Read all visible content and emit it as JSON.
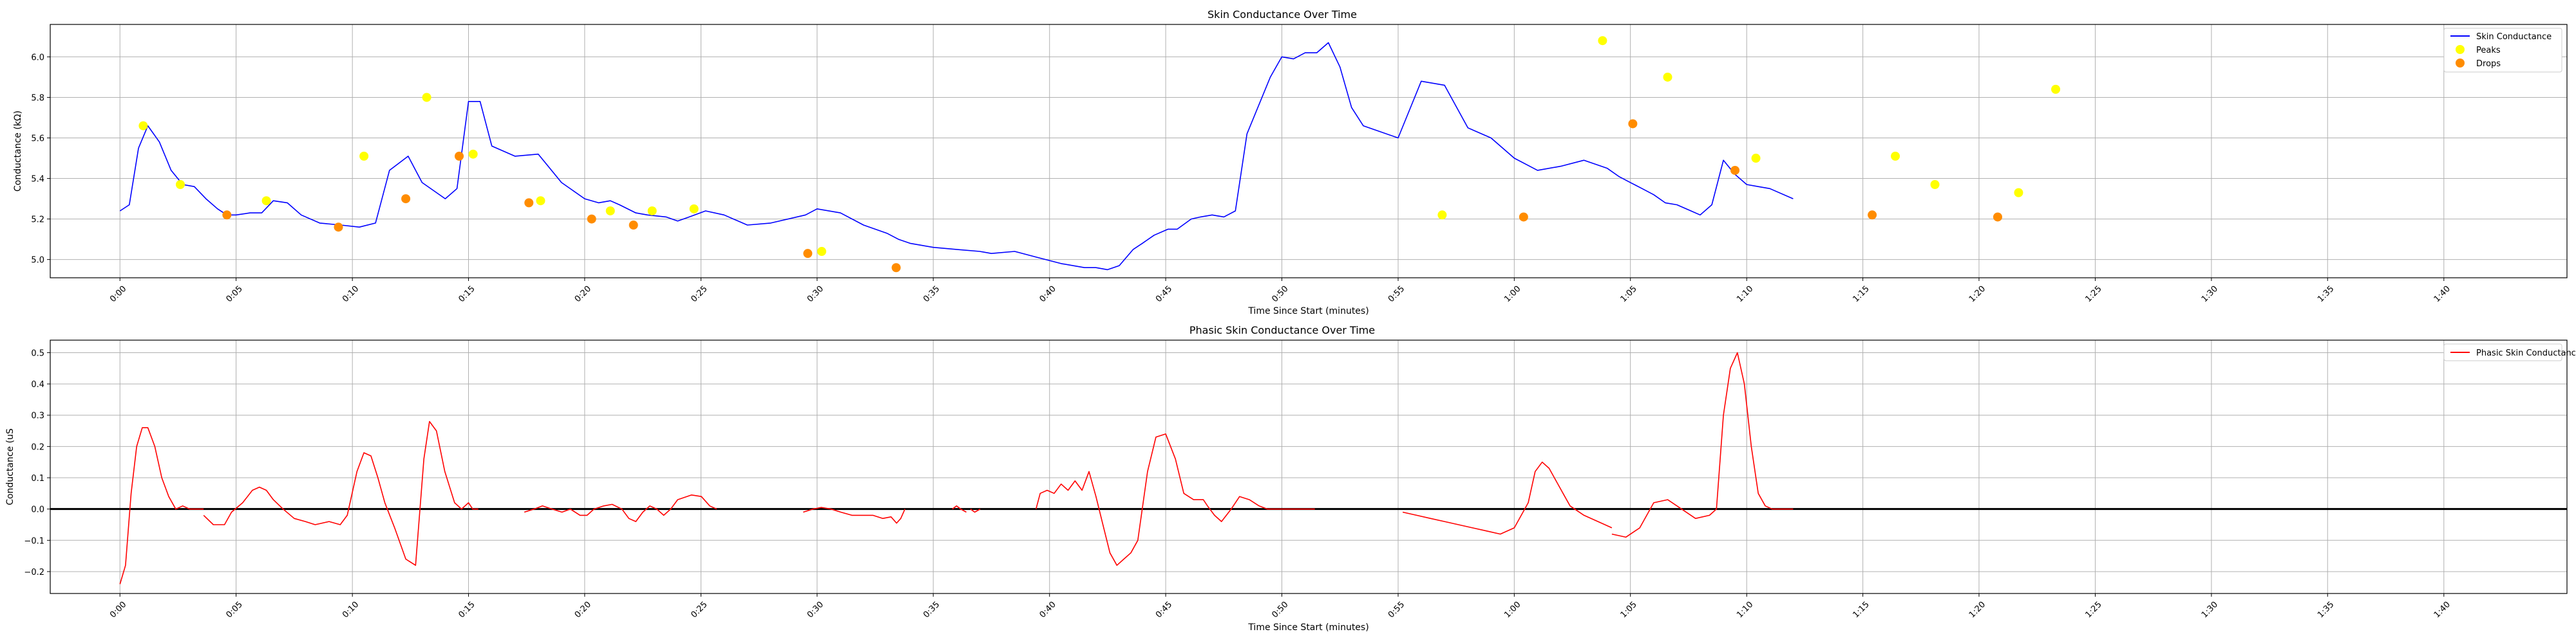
{
  "chart_data": [
    {
      "type": "line",
      "title": "Skin Conductance Over Time",
      "xlabel": "Time Since Start (minutes)",
      "ylabel": "Conductance (kΩ)",
      "x_unit": "minutes",
      "xlim": [
        -0.05,
        1.755
      ],
      "ylim": [
        4.91,
        6.16
      ],
      "x_ticks": [
        0,
        0.0833,
        0.1667,
        0.25,
        0.3333,
        0.4167,
        0.5,
        0.5833,
        0.6667,
        0.75,
        0.8333,
        0.9167,
        1.0,
        1.0833,
        1.1667,
        1.25,
        1.3333,
        1.4167,
        1.5,
        1.5833,
        1.6667
      ],
      "x_tick_labels": [
        "0:00",
        "0:05",
        "0:10",
        "0:15",
        "0:20",
        "0:25",
        "0:30",
        "0:35",
        "0:40",
        "0:45",
        "0:50",
        "0:55",
        "1:00",
        "1:05",
        "1:10",
        "1:15",
        "1:20",
        "1:25",
        "1:30",
        "1:35",
        "1:40"
      ],
      "y_ticks": [
        5.0,
        5.2,
        5.4,
        5.6,
        5.8,
        6.0
      ],
      "y_tick_labels": [
        "5.0",
        "5.2",
        "5.4",
        "5.6",
        "5.8",
        "6.0"
      ],
      "grid": true,
      "legend_position": "top-right",
      "series": [
        {
          "name": "Skin Conductance",
          "color": "#0000ff",
          "x": [
            0.0,
            0.0067,
            0.0133,
            0.02,
            0.0283,
            0.0367,
            0.045,
            0.0533,
            0.0617,
            0.07,
            0.0767,
            0.0833,
            0.0933,
            0.1017,
            0.11,
            0.12,
            0.13,
            0.1433,
            0.1583,
            0.1717,
            0.1833,
            0.1933,
            0.2067,
            0.2167,
            0.2333,
            0.2417,
            0.25,
            0.2583,
            0.2667,
            0.2833,
            0.3,
            0.3167,
            0.3333,
            0.3433,
            0.3517,
            0.3583,
            0.37,
            0.3783,
            0.3917,
            0.4,
            0.4083,
            0.42,
            0.4333,
            0.45,
            0.4667,
            0.4917,
            0.5,
            0.5167,
            0.5333,
            0.55,
            0.5583,
            0.5667,
            0.575,
            0.5833,
            0.6,
            0.6167,
            0.625,
            0.6417,
            0.6583,
            0.675,
            0.6917,
            0.7,
            0.7083,
            0.7167,
            0.7267,
            0.7333,
            0.7417,
            0.7517,
            0.7583,
            0.7683,
            0.775,
            0.7833,
            0.7917,
            0.8,
            0.8083,
            0.825,
            0.8333,
            0.8417,
            0.85,
            0.8583,
            0.8667,
            0.875,
            0.8833,
            0.8917,
            0.9,
            0.9167,
            0.9333,
            0.95,
            0.9667,
            0.9833,
            1.0,
            1.0167,
            1.0333,
            1.05,
            1.0667,
            1.075,
            1.0833,
            1.0917,
            1.1,
            1.1083,
            1.1167,
            1.1267,
            1.1333,
            1.1417,
            1.15,
            1.1583,
            1.1667,
            1.175,
            1.1833,
            1.2
          ],
          "y": [
            5.24,
            5.27,
            5.55,
            5.66,
            5.58,
            5.44,
            5.37,
            5.36,
            5.3,
            5.25,
            5.22,
            5.22,
            5.23,
            5.23,
            5.29,
            5.28,
            5.22,
            5.18,
            5.17,
            5.16,
            5.18,
            5.44,
            5.51,
            5.38,
            5.3,
            5.35,
            5.78,
            5.78,
            5.56,
            5.51,
            5.52,
            5.38,
            5.3,
            5.28,
            5.29,
            5.27,
            5.23,
            5.22,
            5.21,
            5.19,
            5.21,
            5.24,
            5.22,
            5.17,
            5.18,
            5.22,
            5.25,
            5.23,
            5.17,
            5.13,
            5.1,
            5.08,
            5.07,
            5.06,
            5.05,
            5.04,
            5.03,
            5.04,
            5.01,
            4.98,
            4.96,
            4.96,
            4.95,
            4.97,
            5.05,
            5.08,
            5.12,
            5.15,
            5.15,
            5.2,
            5.21,
            5.22,
            5.21,
            5.24,
            5.62,
            5.9,
            6.0,
            5.99,
            6.02,
            6.02,
            6.07,
            5.95,
            5.75,
            5.66,
            5.64,
            5.6,
            5.88,
            5.86,
            5.65,
            5.6,
            5.5,
            5.44,
            5.46,
            5.49,
            5.45,
            5.41,
            5.38,
            5.35,
            5.32,
            5.28,
            5.27,
            5.24,
            5.22,
            5.27,
            5.49,
            5.42,
            5.37,
            5.36,
            5.35,
            5.3
          ],
          "_note": "values continue with the remaining points"
        },
        {
          "name": "Peaks",
          "color": "#ffff00",
          "x": [
            0.0167,
            0.0433,
            0.105,
            0.175,
            0.22,
            0.2533,
            0.3017,
            0.3517,
            0.3817,
            0.4117,
            0.5033,
            0.9483,
            1.0633,
            1.11,
            1.1733,
            1.2733,
            1.3017,
            1.3617,
            1.3883
          ],
          "y": [
            5.66,
            5.37,
            5.29,
            5.51,
            5.8,
            5.52,
            5.29,
            5.24,
            5.24,
            5.25,
            5.04,
            5.22,
            6.08,
            5.9,
            5.5,
            5.51,
            5.37,
            5.33,
            5.84
          ]
        },
        {
          "name": "Drops",
          "color": "#ff8c00",
          "x": [
            0.0767,
            0.1567,
            0.205,
            0.2433,
            0.2933,
            0.3383,
            0.3683,
            0.4933,
            0.5567,
            1.0067,
            1.085,
            1.1583,
            1.2567,
            1.3467
          ],
          "y": [
            5.22,
            5.16,
            5.3,
            5.51,
            5.28,
            5.2,
            5.17,
            5.03,
            4.96,
            5.21,
            5.67,
            5.44,
            5.22,
            5.21
          ]
        }
      ]
    },
    {
      "type": "line",
      "title": "Phasic Skin Conductance Over Time",
      "xlabel": "Time Since Start (minutes)",
      "ylabel": "Conductance (uS",
      "x_unit": "minutes",
      "xlim": [
        -0.05,
        1.755
      ],
      "ylim": [
        -0.27,
        0.54
      ],
      "x_ticks": [
        0,
        0.0833,
        0.1667,
        0.25,
        0.3333,
        0.4167,
        0.5,
        0.5833,
        0.6667,
        0.75,
        0.8333,
        0.9167,
        1.0,
        1.0833,
        1.1667,
        1.25,
        1.3333,
        1.4167,
        1.5,
        1.5833,
        1.6667
      ],
      "x_tick_labels": [
        "0:00",
        "0:05",
        "0:10",
        "0:15",
        "0:20",
        "0:25",
        "0:30",
        "0:35",
        "0:40",
        "0:45",
        "0:50",
        "0:55",
        "1:00",
        "1:05",
        "1:10",
        "1:15",
        "1:20",
        "1:25",
        "1:30",
        "1:35",
        "1:40"
      ],
      "y_ticks": [
        -0.2,
        -0.1,
        0.0,
        0.1,
        0.2,
        0.3,
        0.4,
        0.5
      ],
      "y_tick_labels": [
        "−0.2",
        "−0.1",
        "0.0",
        "0.1",
        "0.2",
        "0.3",
        "0.4",
        "0.5"
      ],
      "grid": true,
      "legend_position": "top-right",
      "baseline": 0,
      "series": [
        {
          "name": "Phasic Skin Conductance",
          "color": "#ff0000",
          "segments": [
            {
              "x": [
                0.0,
                0.004,
                0.008,
                0.012,
                0.016,
                0.02,
                0.025,
                0.03,
                0.035,
                0.04,
                0.045,
                0.05,
                0.055,
                0.06
              ],
              "y": [
                -0.24,
                -0.18,
                0.05,
                0.2,
                0.26,
                0.26,
                0.2,
                0.1,
                0.04,
                0.0,
                0.01,
                0.0,
                0.0,
                0.0
              ]
            },
            {
              "x": [
                0.06,
                0.067,
                0.075,
                0.08,
                0.088,
                0.095,
                0.1,
                0.105,
                0.11,
                0.117,
                0.125,
                0.133,
                0.14,
                0.15,
                0.158,
                0.163,
                0.17,
                0.175,
                0.18,
                0.185,
                0.19,
                0.197,
                0.205,
                0.212,
                0.218,
                0.222,
                0.227,
                0.233,
                0.24,
                0.245,
                0.25,
                0.253,
                0.257
              ],
              "y": [
                -0.02,
                -0.05,
                -0.05,
                -0.01,
                0.02,
                0.06,
                0.07,
                0.06,
                0.03,
                0.0,
                -0.03,
                -0.04,
                -0.05,
                -0.04,
                -0.05,
                -0.02,
                0.12,
                0.18,
                0.17,
                0.1,
                0.02,
                -0.06,
                -0.16,
                -0.18,
                0.16,
                0.28,
                0.25,
                0.12,
                0.02,
                0.0,
                0.02,
                0.0,
                0.0
              ]
            },
            {
              "x": [
                0.29,
                0.297,
                0.303,
                0.31,
                0.317,
                0.323,
                0.33,
                0.335,
                0.34,
                0.347,
                0.353,
                0.36,
                0.365,
                0.37,
                0.375,
                0.38,
                0.385,
                0.39,
                0.395,
                0.4,
                0.41,
                0.417,
                0.423,
                0.428
              ],
              "y": [
                -0.01,
                0.0,
                0.01,
                0.0,
                -0.01,
                0.0,
                -0.02,
                -0.02,
                0.0,
                0.01,
                0.015,
                0.0,
                -0.03,
                -0.04,
                -0.01,
                0.01,
                0.0,
                -0.02,
                0.0,
                0.03,
                0.045,
                0.04,
                0.01,
                0.0
              ]
            },
            {
              "x": [
                0.49,
                0.497,
                0.503,
                0.51,
                0.517,
                0.525,
                0.533,
                0.54,
                0.547,
                0.553,
                0.557,
                0.56,
                0.563
              ],
              "y": [
                -0.01,
                0.0,
                0.005,
                0.0,
                -0.01,
                -0.02,
                -0.02,
                -0.02,
                -0.03,
                -0.025,
                -0.045,
                -0.03,
                0.0
              ]
            },
            {
              "x": [
                0.597,
                0.6,
                0.603,
                0.607
              ],
              "y": [
                0.0,
                0.01,
                0.0,
                -0.01
              ]
            },
            {
              "x": [
                0.61,
                0.613,
                0.617
              ],
              "y": [
                0.0,
                -0.01,
                0.0
              ]
            },
            {
              "x": [
                0.657,
                0.66,
                0.665,
                0.67,
                0.675,
                0.68,
                0.685,
                0.69,
                0.695,
                0.7,
                0.705,
                0.71,
                0.715,
                0.72,
                0.725,
                0.73,
                0.737,
                0.743,
                0.75,
                0.757,
                0.763,
                0.77,
                0.777,
                0.78,
                0.785,
                0.79,
                0.797,
                0.803,
                0.81,
                0.817,
                0.823,
                0.83,
                0.835,
                0.84,
                0.845,
                0.85,
                0.857
              ],
              "y": [
                0.0,
                0.05,
                0.06,
                0.05,
                0.08,
                0.06,
                0.09,
                0.06,
                0.12,
                0.04,
                -0.05,
                -0.14,
                -0.18,
                -0.16,
                -0.14,
                -0.1,
                0.12,
                0.23,
                0.24,
                0.16,
                0.05,
                0.03,
                0.03,
                0.01,
                -0.02,
                -0.04,
                0.0,
                0.04,
                0.03,
                0.01,
                0.0,
                0.0,
                0.0,
                0.0,
                0.0,
                0.0,
                0.0
              ]
            },
            {
              "x": [
                0.92,
                0.93,
                0.94,
                0.95,
                0.96,
                0.97,
                0.98,
                0.99,
                1.0,
                1.01,
                1.015,
                1.02,
                1.025,
                1.03,
                1.035,
                1.04,
                1.05,
                1.06,
                1.07
              ],
              "y": [
                -0.01,
                -0.02,
                -0.03,
                -0.04,
                -0.05,
                -0.06,
                -0.07,
                -0.08,
                -0.06,
                0.02,
                0.12,
                0.15,
                0.13,
                0.09,
                0.05,
                0.01,
                -0.02,
                -0.04,
                -0.06
              ]
            },
            {
              "x": [
                1.07,
                1.08,
                1.09,
                1.1,
                1.11,
                1.12,
                1.13,
                1.14,
                1.145,
                1.15,
                1.155,
                1.16,
                1.165,
                1.17,
                1.175,
                1.18,
                1.185,
                1.19,
                1.195,
                1.2
              ],
              "y": [
                -0.08,
                -0.09,
                -0.06,
                0.02,
                0.03,
                0.0,
                -0.03,
                -0.02,
                0.0,
                0.3,
                0.45,
                0.5,
                0.4,
                0.2,
                0.05,
                0.01,
                0.0,
                0.0,
                0.0,
                0.0
              ]
            }
          ]
        }
      ]
    }
  ]
}
